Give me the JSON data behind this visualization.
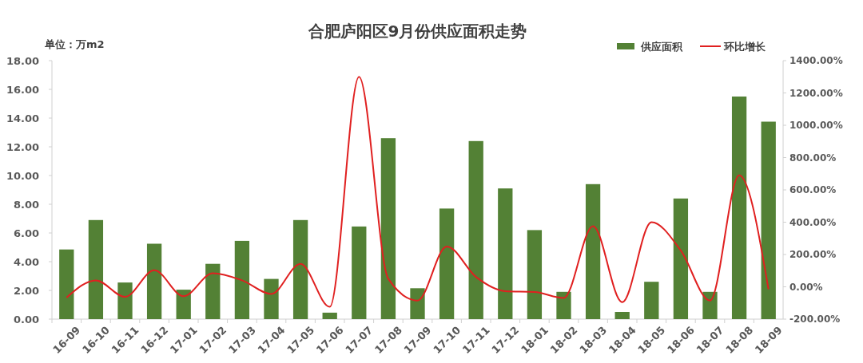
{
  "chart_data": {
    "type": "bar",
    "title": "合肥庐阳区9月份供应面积走势",
    "ylabel": "单位：万m2",
    "categories": [
      "16-09",
      "16-10",
      "16-11",
      "16-12",
      "17-01",
      "17-02",
      "17-03",
      "17-04",
      "17-05",
      "17-06",
      "17-07",
      "17-08",
      "17-09",
      "17-10",
      "17-11",
      "17-12",
      "18-01",
      "18-02",
      "18-03",
      "18-04",
      "18-05",
      "18-06",
      "18-07",
      "18-08",
      "18-09"
    ],
    "series": [
      {
        "name": "供应面积",
        "type": "bar",
        "color": "#538135",
        "values": [
          4.85,
          6.9,
          2.55,
          5.25,
          2.05,
          3.85,
          5.45,
          2.8,
          6.9,
          0.45,
          6.45,
          12.6,
          2.15,
          7.7,
          12.4,
          9.1,
          6.2,
          1.9,
          9.4,
          0.5,
          2.6,
          8.4,
          1.9,
          15.5,
          13.75
        ]
      },
      {
        "name": "环比增长",
        "type": "line",
        "axis": "y2",
        "color": "#e02020",
        "values": [
          -67,
          40,
          -62,
          102,
          -58,
          84,
          40,
          -44,
          142,
          -124,
          1300,
          50,
          -85,
          250,
          61,
          -27,
          -32,
          -69,
          375,
          -95,
          400,
          225,
          -85,
          690,
          -15
        ]
      }
    ],
    "ylim": [
      0,
      18
    ],
    "yticks": [
      {
        "value": 0,
        "label": "0.00"
      },
      {
        "value": 2,
        "label": "2.00"
      },
      {
        "value": 4,
        "label": "4.00"
      },
      {
        "value": 6,
        "label": "6.00"
      },
      {
        "value": 8,
        "label": "8.00"
      },
      {
        "value": 10,
        "label": "10.00"
      },
      {
        "value": 12,
        "label": "12.00"
      },
      {
        "value": 14,
        "label": "14.00"
      },
      {
        "value": 16,
        "label": "16.00"
      },
      {
        "value": 18,
        "label": "18.00"
      }
    ],
    "y2lim": [
      -200,
      1400
    ],
    "y2ticks": [
      {
        "value": -200,
        "label": "-200.00%"
      },
      {
        "value": 0,
        "label": "0.00%"
      },
      {
        "value": 200,
        "label": "200.00%"
      },
      {
        "value": 400,
        "label": "400.00%"
      },
      {
        "value": 600,
        "label": "600.00%"
      },
      {
        "value": 800,
        "label": "800.00%"
      },
      {
        "value": 1000,
        "label": "1000.00%"
      },
      {
        "value": 1200,
        "label": "1200.00%"
      },
      {
        "value": 1400,
        "label": "1400.00%"
      }
    ],
    "legend": "top right",
    "grid": false,
    "marker": "none",
    "line_style": "solid"
  }
}
